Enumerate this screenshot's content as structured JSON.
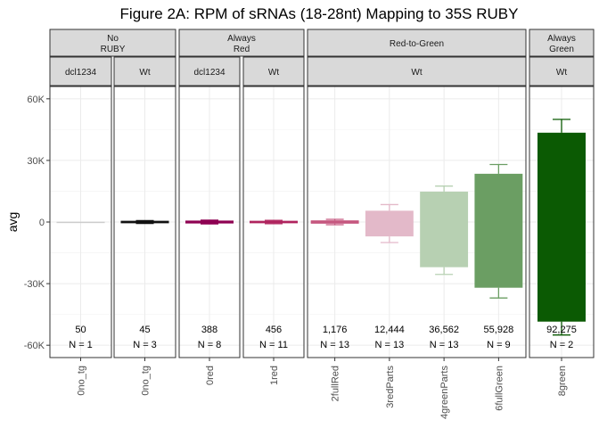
{
  "chart_data": {
    "type": "bar",
    "title": "Figure 2A: RPM of sRNAs (18-28nt) Mapping to 35S RUBY",
    "ylabel": "avg",
    "xlabel": "",
    "ylim": [
      -66000,
      66000
    ],
    "yticks": [
      -60000,
      -30000,
      0,
      30000,
      60000
    ],
    "ytick_labels": [
      "-60K",
      "-30K",
      "0",
      "30K",
      "60K"
    ],
    "grid": true,
    "facet_groups": [
      {
        "label": "No\nRUBY",
        "subpanels": [
          0,
          1
        ]
      },
      {
        "label": "Always\nRed",
        "subpanels": [
          2,
          3
        ]
      },
      {
        "label": "Red-to-Green",
        "subpanels": [
          4
        ]
      },
      {
        "label": "Always\nGreen",
        "subpanels": [
          5
        ]
      }
    ],
    "subpanels": [
      {
        "label": "dcl1234",
        "items": [
          0
        ]
      },
      {
        "label": "Wt",
        "items": [
          1
        ]
      },
      {
        "label": "dcl1234",
        "items": [
          2
        ]
      },
      {
        "label": "Wt",
        "items": [
          3
        ]
      },
      {
        "label": "Wt",
        "items": [
          4,
          5,
          6,
          7
        ]
      },
      {
        "label": "Wt",
        "items": [
          8
        ]
      }
    ],
    "items": [
      {
        "category": "0no_tg",
        "low": -150,
        "high": 150,
        "err_low": null,
        "err_high": null,
        "color": "#cccccc",
        "label": "50",
        "n": "N = 1"
      },
      {
        "category": "0no_tg",
        "low": -600,
        "high": 600,
        "err_low": -700,
        "err_high": 700,
        "color": "#111111",
        "label": "45",
        "n": "N = 3"
      },
      {
        "category": "0red",
        "low": -700,
        "high": 700,
        "err_low": -900,
        "err_high": 900,
        "color": "#8e0152",
        "label": "388",
        "n": "N = 8"
      },
      {
        "category": "1red",
        "low": -600,
        "high": 600,
        "err_low": -800,
        "err_high": 800,
        "color": "#b0245e",
        "label": "456",
        "n": "N = 11"
      },
      {
        "category": "2fullRed",
        "low": -800,
        "high": 800,
        "err_low": -1300,
        "err_high": 1300,
        "color": "#c5577f",
        "label": "1,176",
        "n": "N = 13"
      },
      {
        "category": "3redParts",
        "low": -7000,
        "high": 5500,
        "err_low": -10000,
        "err_high": 8500,
        "color": "#e3b9c9",
        "label": "12,444",
        "n": "N = 13"
      },
      {
        "category": "4greenParts",
        "low": -22000,
        "high": 14800,
        "err_low": -25500,
        "err_high": 17500,
        "color": "#b7d0b2",
        "label": "36,562",
        "n": "N = 13"
      },
      {
        "category": "6fullGreen",
        "low": -32000,
        "high": 23500,
        "err_low": -37000,
        "err_high": 28000,
        "color": "#6b9e63",
        "label": "55,928",
        "n": "N = 9"
      },
      {
        "category": "8green",
        "low": -48500,
        "high": 43500,
        "err_low": -55000,
        "err_high": 50000,
        "color": "#0b5a03",
        "label": "92,275",
        "n": "N = 2"
      }
    ]
  }
}
